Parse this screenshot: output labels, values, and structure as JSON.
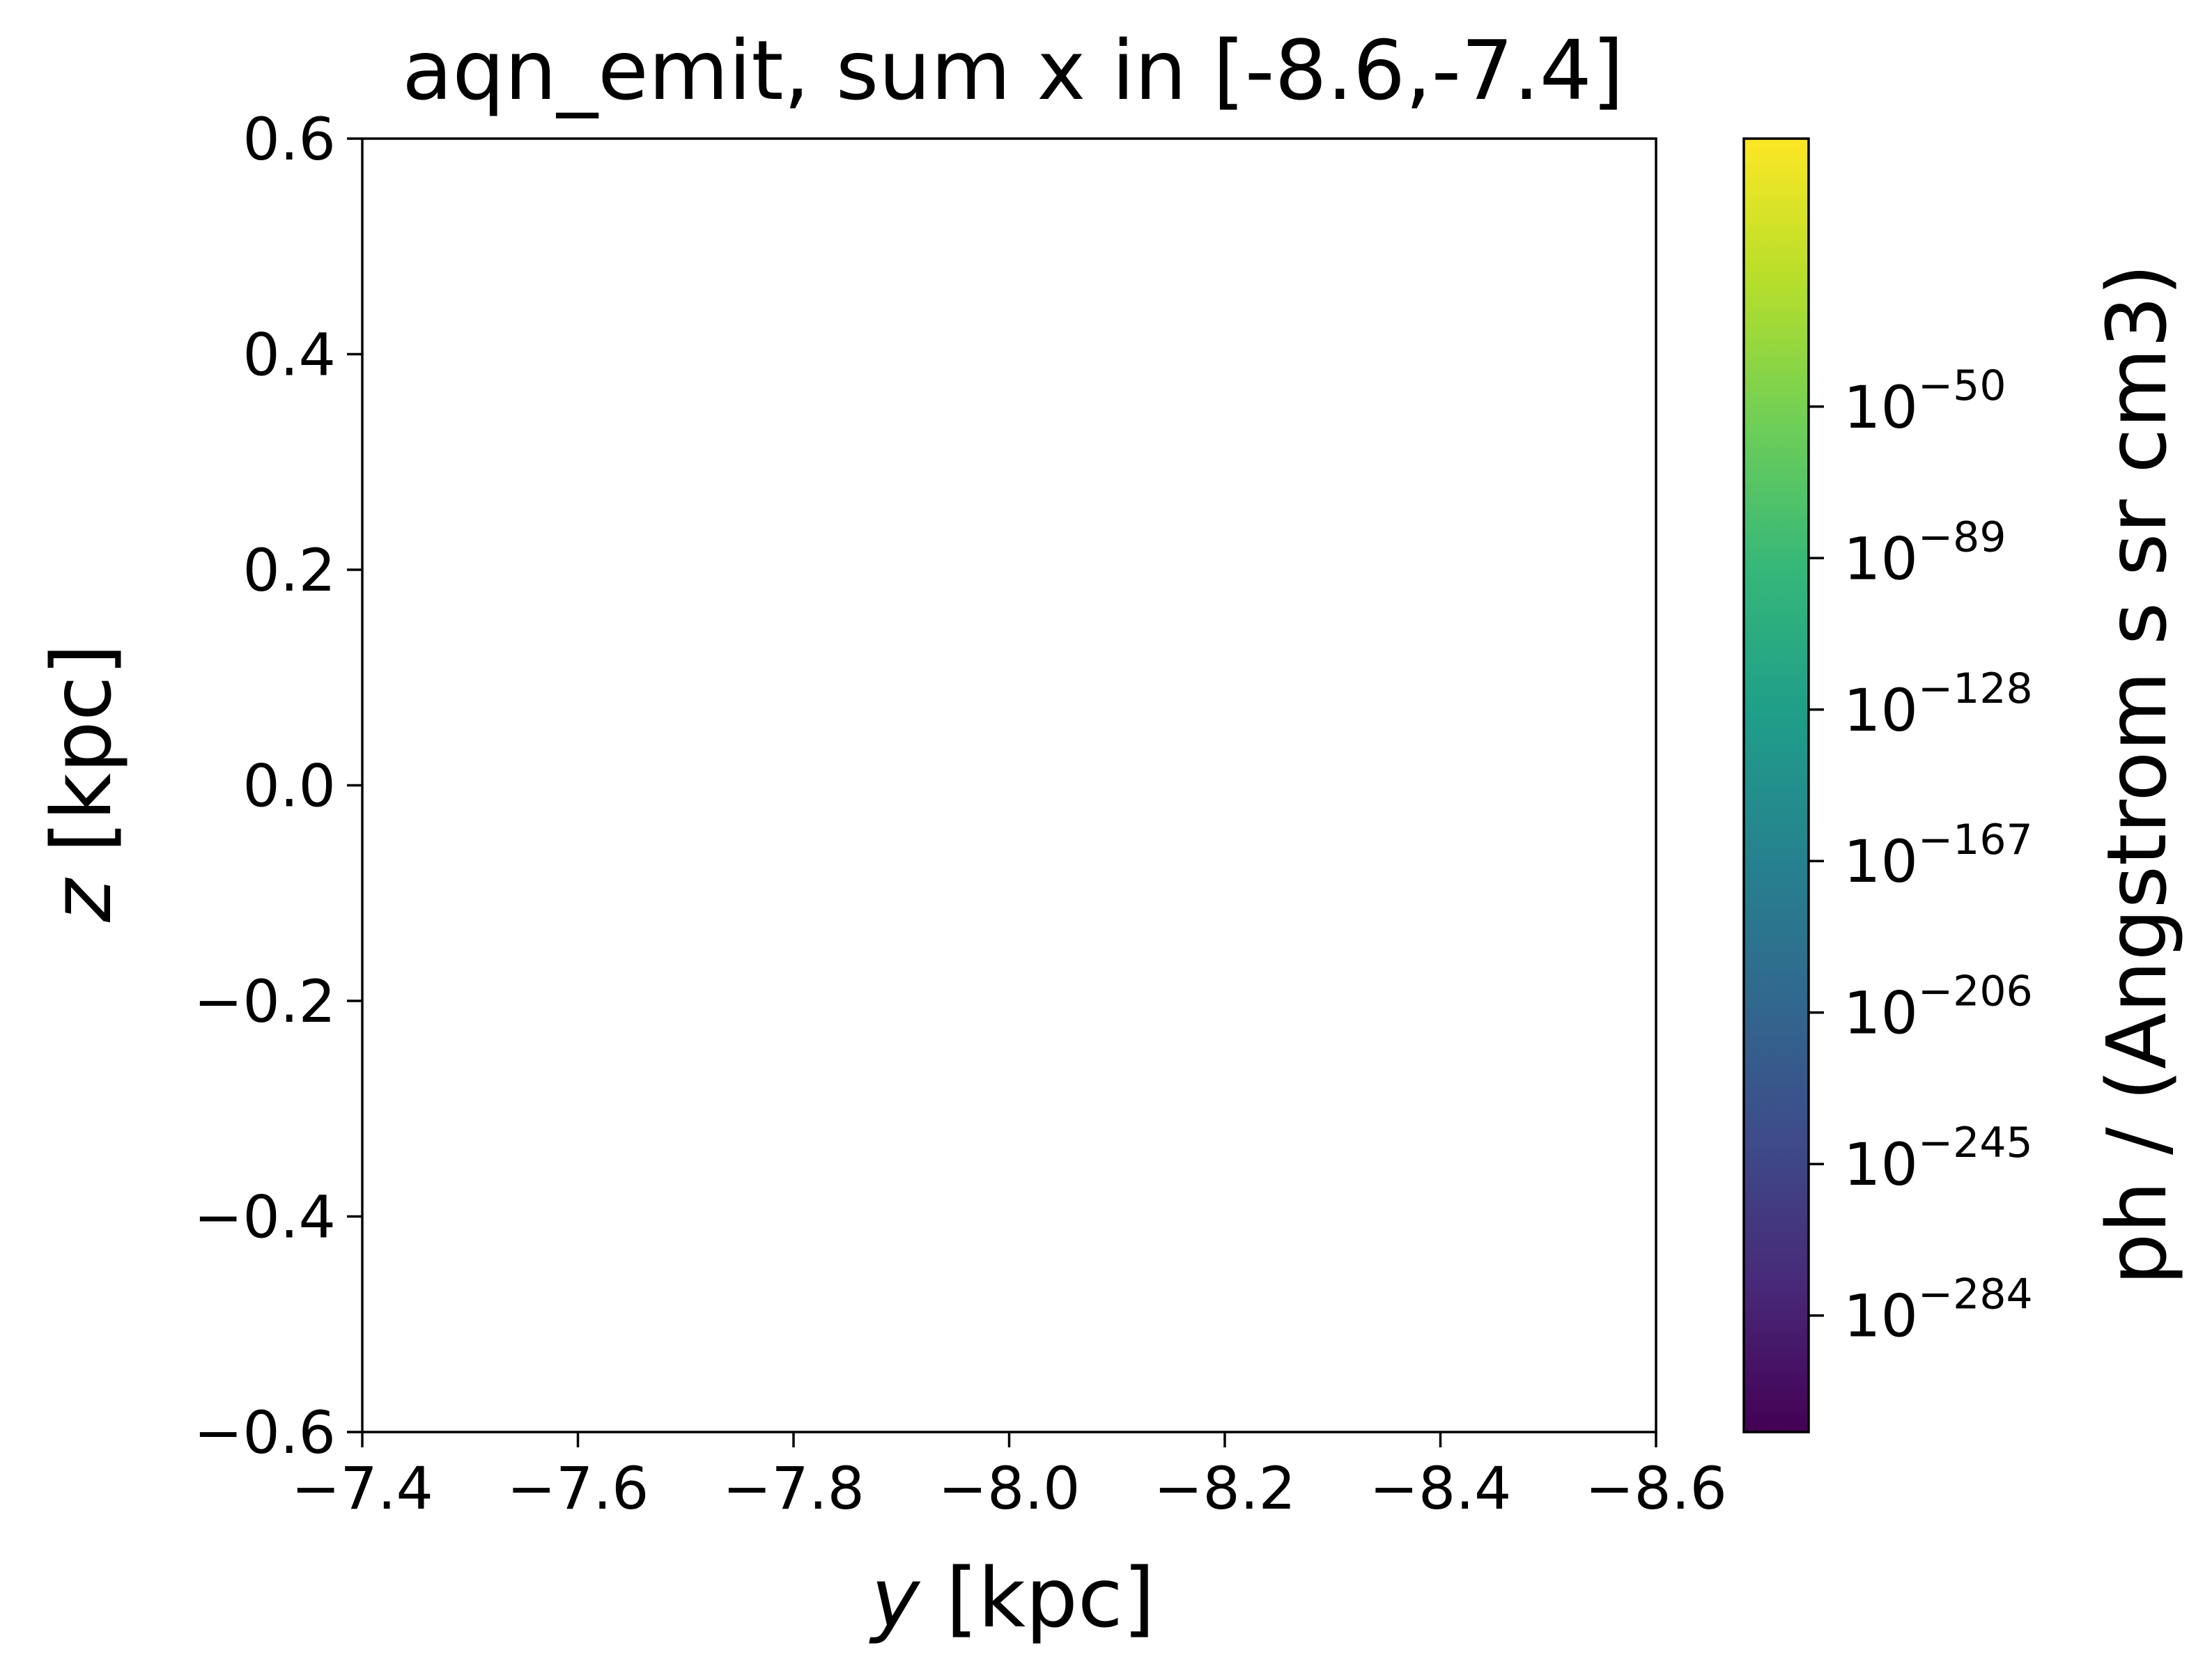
{
  "chart_data": {
    "type": "heatmap",
    "title": "aqn_emit, sum x in [-8.6,-7.4]",
    "xlabel_var": "y",
    "xlabel_unit": " [kpc]",
    "ylabel_var": "z",
    "ylabel_unit": " [kpc]",
    "xlim": [
      -7.4,
      -8.6
    ],
    "ylim": [
      -0.6,
      0.6
    ],
    "x_ticks": [
      {
        "value": -7.4,
        "label": "−7.4"
      },
      {
        "value": -7.6,
        "label": "−7.6"
      },
      {
        "value": -7.8,
        "label": "−7.8"
      },
      {
        "value": -8.0,
        "label": "−8.0"
      },
      {
        "value": -8.2,
        "label": "−8.2"
      },
      {
        "value": -8.4,
        "label": "−8.4"
      },
      {
        "value": -8.6,
        "label": "−8.6"
      }
    ],
    "y_ticks": [
      {
        "value": -0.6,
        "label": "−0.6"
      },
      {
        "value": -0.4,
        "label": "−0.4"
      },
      {
        "value": -0.2,
        "label": "−0.2"
      },
      {
        "value": 0.0,
        "label": "0.0"
      },
      {
        "value": 0.2,
        "label": "0.2"
      },
      {
        "value": 0.4,
        "label": "0.4"
      },
      {
        "value": 0.6,
        "label": "0.6"
      }
    ],
    "values": [],
    "grid": false,
    "colorbar": {
      "label": "ph / (Angstrom s sr cm3)",
      "colormap": "viridis",
      "scale": "log",
      "range_log10": [
        -314,
        19
      ],
      "ticks": [
        {
          "exponent": -50,
          "base": "10",
          "label": "−50"
        },
        {
          "exponent": -89,
          "base": "10",
          "label": "−89"
        },
        {
          "exponent": -128,
          "base": "10",
          "label": "−128"
        },
        {
          "exponent": -167,
          "base": "10",
          "label": "−167"
        },
        {
          "exponent": -206,
          "base": "10",
          "label": "−206"
        },
        {
          "exponent": -245,
          "base": "10",
          "label": "−245"
        },
        {
          "exponent": -284,
          "base": "10",
          "label": "−284"
        }
      ]
    },
    "colors": {
      "axis": "#000000",
      "background": "#ffffff",
      "viridis": [
        "#440154",
        "#482878",
        "#3e4a89",
        "#31688e",
        "#26828e",
        "#1f9e89",
        "#35b779",
        "#6ece58",
        "#b5de2b",
        "#fde725"
      ]
    }
  }
}
